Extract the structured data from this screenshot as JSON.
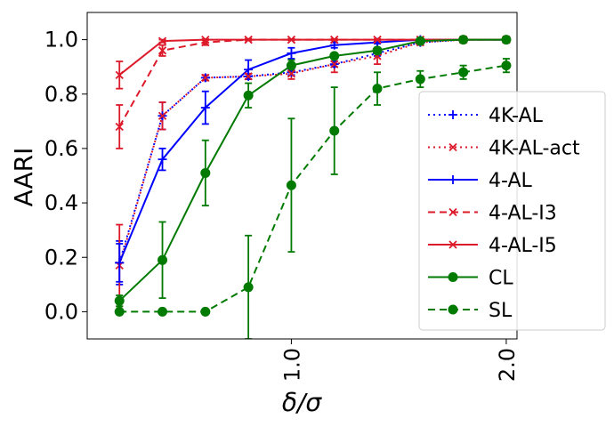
{
  "chart_data": {
    "type": "line",
    "title": "",
    "xlabel": "δ/σ",
    "ylabel": "AARI",
    "xlim": [
      0.05,
      2.05
    ],
    "ylim": [
      -0.1,
      1.1
    ],
    "x_ticks": [
      {
        "value": 1.0,
        "label": "1.0"
      },
      {
        "value": 2.0,
        "label": "2.0"
      }
    ],
    "y_ticks": [
      {
        "value": 0.0,
        "label": "0.0"
      },
      {
        "value": 0.2,
        "label": "0.2"
      },
      {
        "value": 0.4,
        "label": "0.4"
      },
      {
        "value": 0.6,
        "label": "0.6"
      },
      {
        "value": 0.8,
        "label": "0.8"
      },
      {
        "value": 1.0,
        "label": "1.0"
      }
    ],
    "grid": false,
    "legend_position": "center-right",
    "x": [
      0.2,
      0.4,
      0.6,
      0.8,
      1.0,
      1.2,
      1.4,
      1.6,
      1.8,
      2.0
    ],
    "series": [
      {
        "name": "4K-AL",
        "color": "#0000ff",
        "dash": "dotted",
        "marker": "plus",
        "values": [
          0.18,
          0.72,
          0.86,
          0.865,
          0.88,
          0.91,
          0.95,
          0.99,
          1.0,
          1.0
        ],
        "errors": [
          0.08,
          0.05,
          0.01,
          0.01,
          0.01,
          0.01,
          0.01,
          0.005,
          0.003,
          0.002
        ]
      },
      {
        "name": "4K-AL-act",
        "color": "#dd1a2a",
        "dash": "dotted",
        "marker": "x",
        "values": [
          0.17,
          0.72,
          0.86,
          0.865,
          0.875,
          0.91,
          0.94,
          0.99,
          1.0,
          1.0
        ],
        "errors": [
          0.15,
          0.05,
          0.01,
          0.01,
          0.02,
          0.03,
          0.03,
          0.01,
          0.005,
          0.003
        ]
      },
      {
        "name": "4-AL",
        "color": "#0000ff",
        "dash": "solid",
        "marker": "plus",
        "values": [
          0.18,
          0.56,
          0.75,
          0.89,
          0.95,
          0.98,
          0.99,
          1.0,
          1.0,
          1.0
        ],
        "errors": [
          0.07,
          0.04,
          0.06,
          0.035,
          0.02,
          0.01,
          0.005,
          0.003,
          0.002,
          0.002
        ]
      },
      {
        "name": "4-AL-I3",
        "color": "#dd1a2a",
        "dash": "dashed",
        "marker": "x",
        "values": [
          0.68,
          0.96,
          0.99,
          1.0,
          1.0,
          1.0,
          1.0,
          1.0,
          1.0,
          1.0
        ],
        "errors": [
          0.08,
          0.02,
          0.01,
          0.003,
          0.002,
          0.002,
          0.002,
          0.002,
          0.002,
          0.002
        ]
      },
      {
        "name": "4-AL-I5",
        "color": "#dd1a2a",
        "dash": "solid",
        "marker": "x",
        "values": [
          0.87,
          0.995,
          1.0,
          1.0,
          1.0,
          1.0,
          1.0,
          1.0,
          1.0,
          1.0
        ],
        "errors": [
          0.05,
          0.005,
          0.002,
          0.002,
          0.002,
          0.002,
          0.002,
          0.002,
          0.002,
          0.002
        ]
      },
      {
        "name": "CL",
        "color": "#007a00",
        "dash": "solid",
        "marker": "circle",
        "values": [
          0.04,
          0.19,
          0.51,
          0.795,
          0.905,
          0.94,
          0.96,
          0.995,
          1.0,
          1.0
        ],
        "errors": [
          0.02,
          0.14,
          0.12,
          0.045,
          0.02,
          0.01,
          0.01,
          0.005,
          0.003,
          0.002
        ]
      },
      {
        "name": "SL",
        "color": "#007a00",
        "dash": "dashed",
        "marker": "circle",
        "values": [
          0.0,
          0.0,
          0.0,
          0.09,
          0.465,
          0.665,
          0.82,
          0.855,
          0.88,
          0.905
        ],
        "errors": [
          0.0,
          0.0,
          0.0,
          0.19,
          0.245,
          0.16,
          0.06,
          0.03,
          0.025,
          0.025
        ]
      }
    ]
  }
}
